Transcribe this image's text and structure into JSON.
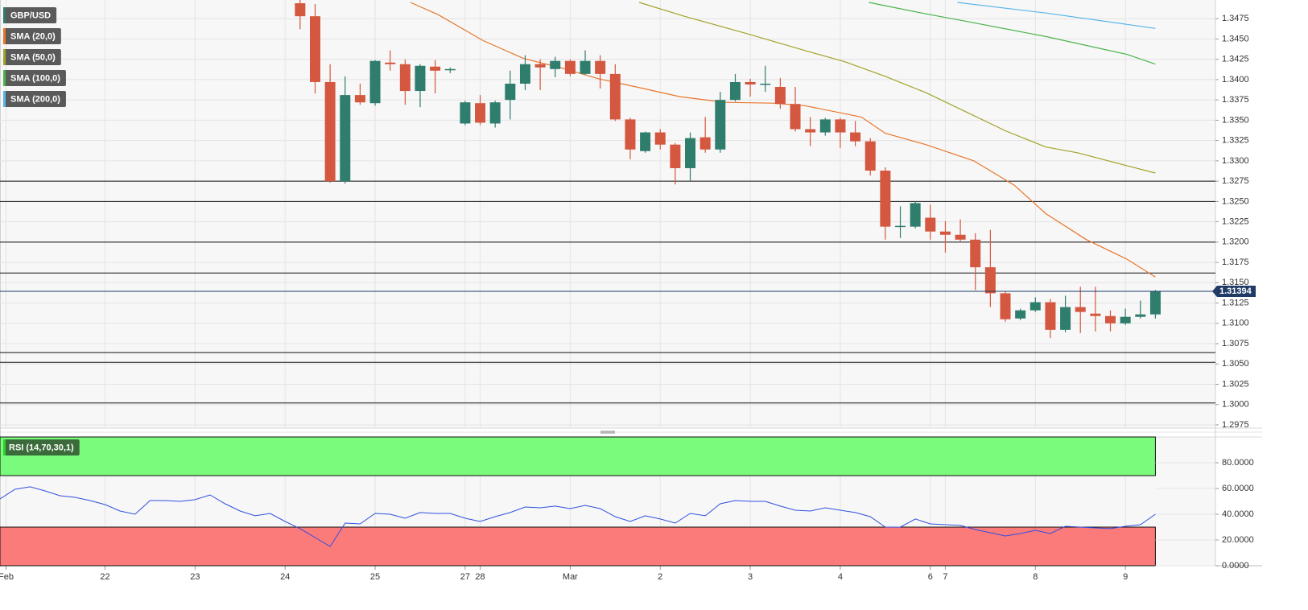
{
  "chart_data": [
    {
      "type": "candlestick",
      "title": "GBP/USD",
      "x": [
        0,
        1,
        2,
        3,
        4,
        5,
        6,
        7,
        8,
        9,
        10,
        11,
        12,
        13,
        14,
        15,
        16,
        17,
        18,
        19,
        20,
        21,
        22,
        23,
        24,
        25,
        26,
        27,
        28,
        29,
        30,
        31,
        32,
        33,
        34,
        35,
        36,
        37,
        38,
        39,
        40,
        41,
        42,
        43,
        44,
        45,
        46,
        47,
        48,
        49,
        50,
        51,
        52,
        53,
        54,
        55,
        56,
        57
      ],
      "open": [
        1.3494,
        1.3478,
        1.3397,
        1.3275,
        1.3381,
        1.3371,
        1.3421,
        1.3419,
        1.3386,
        1.3416,
        1.3412,
        1.3346,
        1.3371,
        1.3346,
        1.3375,
        1.3395,
        1.3419,
        1.3413,
        1.3423,
        1.3407,
        1.3423,
        1.3407,
        1.3351,
        1.3312,
        1.3335,
        1.332,
        1.3291,
        1.3329,
        1.3314,
        1.3375,
        1.3397,
        1.3394,
        1.3391,
        1.337,
        1.3339,
        1.3335,
        1.3351,
        1.3335,
        1.3324,
        1.3288,
        1.3219,
        1.3219,
        1.323,
        1.3213,
        1.3209,
        1.3203,
        1.3169,
        1.3137,
        1.3106,
        1.3116,
        1.3126,
        1.3092,
        1.312,
        1.3112,
        1.3109,
        1.31,
        1.3108,
        1.3111
      ],
      "high": [
        1.3498,
        1.3493,
        1.3419,
        1.3404,
        1.3395,
        1.3424,
        1.3436,
        1.3425,
        1.3419,
        1.3424,
        1.3415,
        1.3374,
        1.3381,
        1.3374,
        1.3411,
        1.343,
        1.3425,
        1.3428,
        1.3425,
        1.3436,
        1.343,
        1.3419,
        1.3353,
        1.3336,
        1.3339,
        1.3322,
        1.3335,
        1.3354,
        1.3385,
        1.3407,
        1.3401,
        1.3417,
        1.3402,
        1.3391,
        1.3354,
        1.3353,
        1.3353,
        1.3349,
        1.3328,
        1.3292,
        1.3244,
        1.325,
        1.3246,
        1.3226,
        1.3228,
        1.3211,
        1.3215,
        1.3139,
        1.3118,
        1.3132,
        1.313,
        1.3134,
        1.3145,
        1.3145,
        1.3116,
        1.3118,
        1.3128,
        1.3141
      ],
      "low": [
        1.3462,
        1.3383,
        1.3273,
        1.3272,
        1.3369,
        1.3368,
        1.3411,
        1.3369,
        1.3366,
        1.3383,
        1.3408,
        1.3344,
        1.3344,
        1.3341,
        1.3351,
        1.3387,
        1.3387,
        1.3403,
        1.3404,
        1.3406,
        1.3389,
        1.3349,
        1.3302,
        1.331,
        1.3314,
        1.3271,
        1.3275,
        1.331,
        1.331,
        1.3373,
        1.3379,
        1.3385,
        1.3364,
        1.3336,
        1.3318,
        1.3331,
        1.3316,
        1.3318,
        1.3282,
        1.3203,
        1.3205,
        1.3217,
        1.3203,
        1.3187,
        1.3201,
        1.3141,
        1.312,
        1.3102,
        1.3104,
        1.3114,
        1.3082,
        1.3089,
        1.3088,
        1.309,
        1.309,
        1.3098,
        1.3106,
        1.3106
      ],
      "close": [
        1.3478,
        1.3397,
        1.3275,
        1.3381,
        1.3372,
        1.3423,
        1.3419,
        1.3386,
        1.3417,
        1.3411,
        1.3413,
        1.3372,
        1.3347,
        1.3372,
        1.3395,
        1.3419,
        1.3415,
        1.3423,
        1.3407,
        1.3423,
        1.3407,
        1.3351,
        1.3314,
        1.3335,
        1.332,
        1.3291,
        1.3328,
        1.3314,
        1.3375,
        1.3397,
        1.3394,
        1.3395,
        1.337,
        1.3339,
        1.3335,
        1.3351,
        1.3335,
        1.3324,
        1.3288,
        1.3219,
        1.322,
        1.3248,
        1.3213,
        1.3209,
        1.3203,
        1.3169,
        1.3137,
        1.3105,
        1.3116,
        1.3126,
        1.3092,
        1.312,
        1.3114,
        1.3109,
        1.31,
        1.3108,
        1.3111,
        1.3139
      ],
      "colors": {
        "up": "#2f7d6d",
        "down": "#d4573f"
      },
      "series": [
        {
          "name": "SMA (20,0)",
          "color": "#e8762b",
          "x": [
            7.35,
            9.2,
            12.2,
            14.9,
            17.5,
            19.9,
            22.4,
            25.3,
            28.3,
            31.5,
            33.6,
            37.4,
            39.0,
            41.7,
            44.9,
            47.6,
            49.7,
            52.4,
            55.1,
            57.0
          ],
          "values": [
            1.3495,
            1.348,
            1.3448,
            1.3426,
            1.3414,
            1.3401,
            1.3391,
            1.3379,
            1.3372,
            1.3371,
            1.3368,
            1.3354,
            1.3334,
            1.332,
            1.33,
            1.327,
            1.3235,
            1.3203,
            1.3179,
            1.3157
          ]
        },
        {
          "name": "SMA (50,0)",
          "color": "#a3a32a",
          "x": [
            22.6,
            25.6,
            29.9,
            33.6,
            36.3,
            39.0,
            41.7,
            44.3,
            47.0,
            49.7,
            51.8,
            55.1,
            57.0
          ],
          "values": [
            1.3495,
            1.3478,
            1.3456,
            1.3436,
            1.3422,
            1.3404,
            1.3384,
            1.3361,
            1.3337,
            1.3317,
            1.331,
            1.3294,
            1.3285
          ]
        },
        {
          "name": "SMA (100,0)",
          "color": "#4cb34c",
          "x": [
            37.9,
            41.7,
            44.3,
            49.7,
            55.1,
            57.0
          ],
          "values": [
            1.3495,
            1.3481,
            1.3472,
            1.3453,
            1.3431,
            1.3419
          ]
        },
        {
          "name": "SMA (200,0)",
          "color": "#5ab4ea",
          "x": [
            43.8,
            49.7,
            55.1,
            57.0
          ],
          "values": [
            1.3495,
            1.3482,
            1.3468,
            1.3463
          ]
        }
      ],
      "levels": [
        1.3275,
        1.325,
        1.32,
        1.3162,
        1.3064,
        1.3052,
        1.3002
      ],
      "level_color": "#111111",
      "last_price": 1.31394,
      "last_price_color": "#1f3b66",
      "xlim": [
        -20,
        61
      ],
      "ylim": [
        1.2971,
        1.3498
      ],
      "yticks": [
        1.3475,
        {
          "value": 1.345,
          "label": "1.3450"
        },
        1.3425,
        {
          "value": 1.34,
          "label": "1.3400"
        },
        1.3375,
        {
          "value": 1.335,
          "label": "1.3350"
        },
        1.3325,
        {
          "value": 1.33,
          "label": "1.3300"
        },
        1.3275,
        {
          "value": 1.325,
          "label": "1.3250"
        },
        1.3225,
        {
          "value": 1.32,
          "label": "1.3200"
        },
        1.3175,
        {
          "value": 1.315,
          "label": "1.3150"
        },
        1.3125,
        {
          "value": 1.31,
          "label": "1.3100"
        },
        1.3075,
        {
          "value": 1.305,
          "label": "1.3050"
        },
        1.3025,
        {
          "value": 1.3,
          "label": "1.3000"
        },
        1.2975
      ],
      "xticks": [
        {
          "value": -19.6,
          "label": "Feb"
        },
        {
          "value": -13,
          "label": "22"
        },
        {
          "value": -7,
          "label": "23"
        },
        {
          "value": -1,
          "label": "24"
        },
        {
          "value": 5,
          "label": "25"
        },
        {
          "value": 11,
          "label": "27"
        },
        {
          "value": 12,
          "label": "28"
        },
        {
          "value": 18,
          "label": "Mar"
        },
        {
          "value": 24,
          "label": "2"
        },
        {
          "value": 30,
          "label": "3"
        },
        {
          "value": 36,
          "label": "4"
        },
        {
          "value": 42,
          "label": "6"
        },
        {
          "value": 43,
          "label": "7"
        },
        {
          "value": 49,
          "label": "8"
        },
        {
          "value": 55,
          "label": "9"
        }
      ],
      "grid": true
    },
    {
      "type": "line",
      "title": "RSI (14,70,30,1)",
      "color": "#2f4fe0",
      "x": [
        -20,
        -19,
        -18,
        -17,
        -16,
        -15,
        -14,
        -13,
        -12,
        -11,
        -10,
        -9,
        -8,
        -7,
        -6,
        -5,
        -4,
        -3,
        -2,
        -1,
        0,
        1,
        2,
        3,
        4,
        5,
        6,
        7,
        8,
        9,
        10,
        11,
        12,
        13,
        14,
        15,
        16,
        17,
        18,
        19,
        20,
        21,
        22,
        23,
        24,
        25,
        26,
        27,
        28,
        29,
        30,
        31,
        32,
        33,
        34,
        35,
        36,
        37,
        38,
        39,
        40,
        41,
        42,
        43,
        44,
        45,
        46,
        47,
        48,
        49,
        50,
        51,
        52,
        53,
        54,
        55,
        56,
        57
      ],
      "values": [
        51.9,
        59.4,
        61.3,
        58.1,
        54.4,
        53.1,
        50.6,
        47.5,
        42.5,
        40.0,
        50.6,
        50.6,
        50.0,
        51.3,
        55.0,
        48.1,
        42.5,
        38.8,
        40.6,
        34.4,
        28.8,
        21.9,
        15.0,
        33.1,
        32.5,
        40.6,
        40.0,
        36.9,
        41.3,
        40.6,
        40.6,
        36.9,
        34.4,
        38.1,
        41.3,
        45.6,
        45.0,
        46.3,
        44.4,
        46.9,
        44.4,
        38.1,
        34.4,
        38.8,
        36.3,
        33.1,
        40.6,
        38.8,
        48.1,
        50.6,
        50.0,
        50.0,
        46.3,
        43.1,
        42.5,
        45.0,
        43.1,
        41.3,
        38.1,
        30.0,
        30.0,
        36.3,
        32.5,
        31.9,
        31.3,
        28.1,
        25.6,
        23.1,
        25.0,
        27.5,
        25.0,
        30.6,
        30.0,
        29.4,
        28.8,
        30.6,
        31.9,
        40.0
      ],
      "bands": [
        {
          "from": 70,
          "to": 100,
          "color": "#7bfb7b"
        },
        {
          "from": 0,
          "to": 30,
          "color": "#fb7a7a"
        }
      ],
      "xlim": [
        -20,
        61
      ],
      "ylim": [
        0,
        100
      ],
      "yticks": [
        {
          "value": 0,
          "label": "0.0000"
        },
        {
          "value": 20,
          "label": "20.0000"
        },
        {
          "value": 40,
          "label": "40.0000"
        },
        {
          "value": 60,
          "label": "60.0000"
        },
        {
          "value": 80,
          "label": "80.0000"
        }
      ],
      "grid": true
    }
  ]
}
